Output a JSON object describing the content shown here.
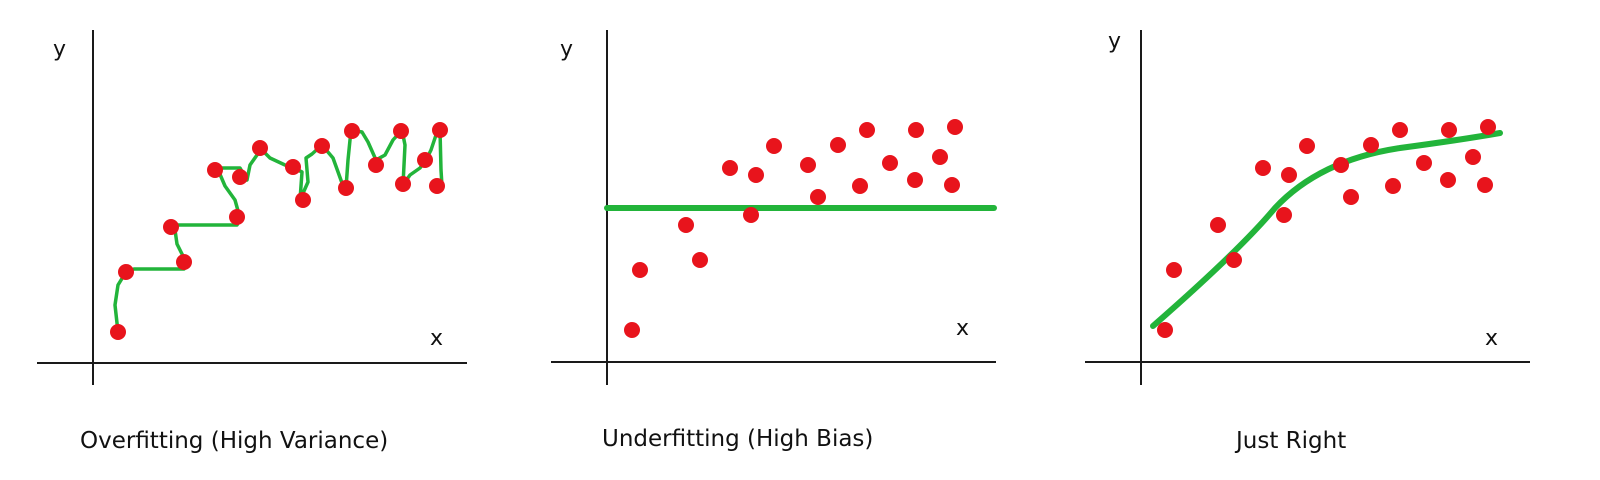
{
  "colors": {
    "points": "#e8141c",
    "fit": "#22b43a",
    "axis": "#1a1a1a"
  },
  "panels": [
    {
      "caption": "Overfitting (High Variance)",
      "x_label": "x",
      "y_label": "y",
      "fit_style": "jagged curve through every point"
    },
    {
      "caption": "Underfitting (High Bias)",
      "x_label": "x",
      "y_label": "y",
      "fit_style": "flat straight line"
    },
    {
      "caption": "Just Right",
      "x_label": "x",
      "y_label": "y",
      "fit_style": "smooth curve"
    }
  ]
}
